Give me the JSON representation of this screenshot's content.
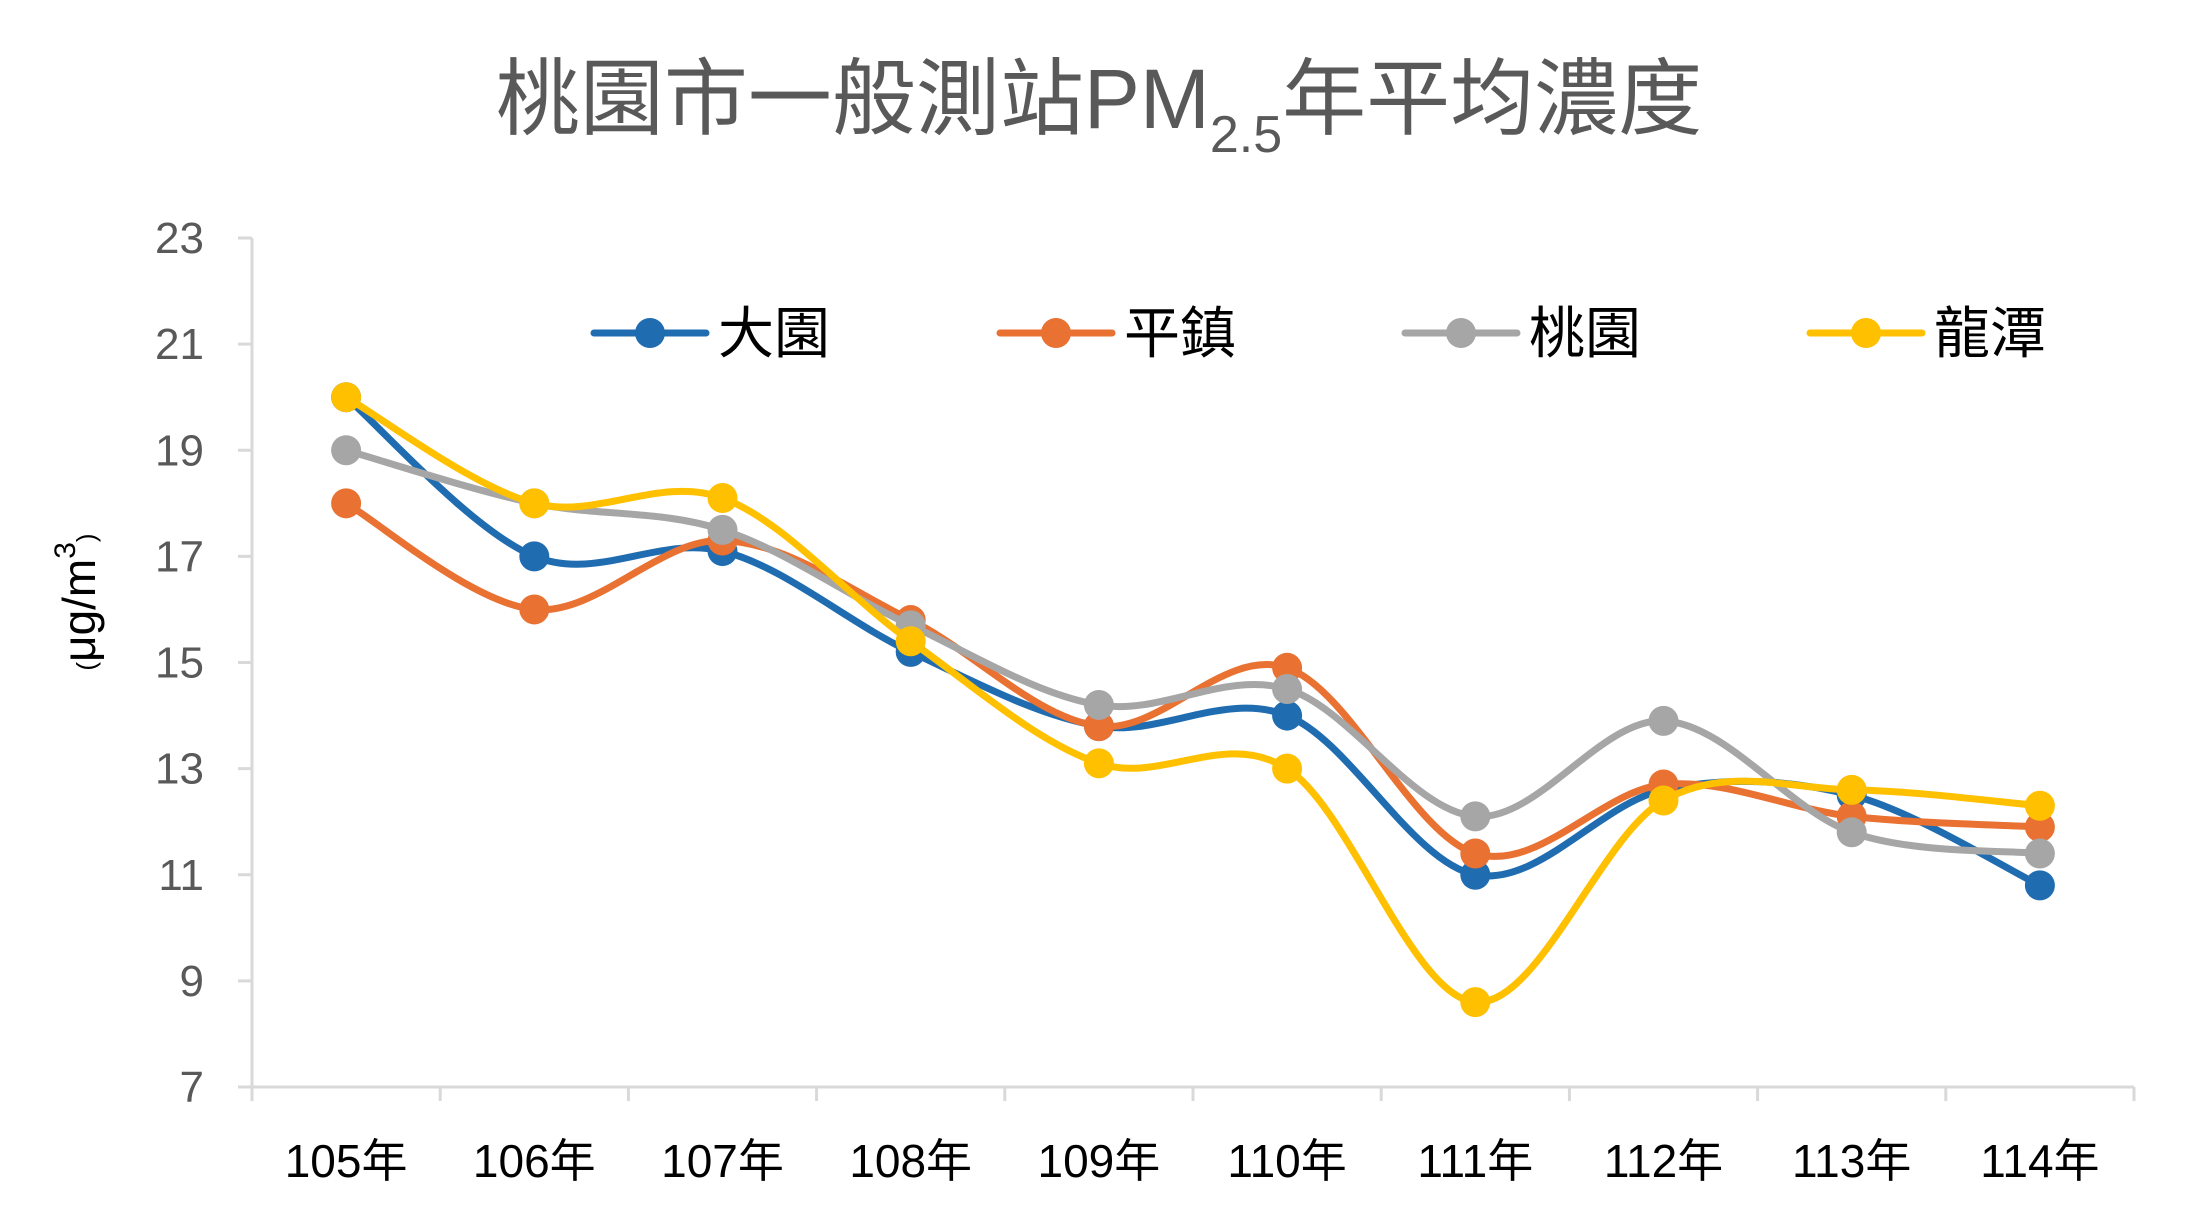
{
  "chart_data": {
    "type": "line",
    "title": {
      "main": "桃園市一般測站PM",
      "subscript": "2.5",
      "suffix": "年平均濃度"
    },
    "xlabel": "",
    "ylabel": {
      "open_paren": "(",
      "unit": "μg/m",
      "superscript": "3",
      "close_paren": ")"
    },
    "ylim": [
      7,
      23
    ],
    "yticks": [
      7,
      9,
      11,
      13,
      15,
      17,
      19,
      21,
      23
    ],
    "categories": [
      "105年",
      "106年",
      "107年",
      "108年",
      "109年",
      "110年",
      "111年",
      "112年",
      "113年",
      "114年"
    ],
    "legend_position": "top",
    "grid": false,
    "series": [
      {
        "name": "大園",
        "color": "#1F6CB0",
        "values": [
          20.0,
          17.0,
          17.1,
          15.2,
          13.8,
          14.0,
          11.0,
          12.6,
          12.5,
          10.8
        ]
      },
      {
        "name": "平鎮",
        "color": "#E97132",
        "values": [
          18.0,
          16.0,
          17.3,
          15.8,
          13.8,
          14.9,
          11.4,
          12.7,
          12.1,
          11.9
        ]
      },
      {
        "name": "桃園",
        "color": "#A6A6A6",
        "values": [
          19.0,
          18.0,
          17.5,
          15.7,
          14.2,
          14.5,
          12.1,
          13.9,
          11.8,
          11.4
        ]
      },
      {
        "name": "龍潭",
        "color": "#FFC000",
        "values": [
          20.0,
          18.0,
          18.1,
          15.4,
          13.1,
          13.0,
          8.6,
          12.4,
          12.6,
          12.3
        ]
      }
    ]
  }
}
